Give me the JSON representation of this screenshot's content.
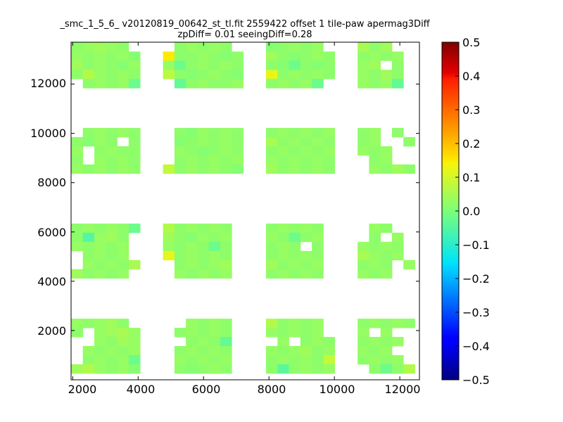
{
  "chart_data": {
    "type": "heatmap",
    "title_line1": "_smc_1_5_6_ v20120819_00642_st_tl.fit 2559422 offset 1 tile-paw apermag3Diff",
    "title_line2": "zpDiff= 0.01 seeingDiff=0.28",
    "xlim": [
      1950,
      12600
    ],
    "ylim": [
      0,
      13700
    ],
    "x_ticks": [
      "2000",
      "4000",
      "6000",
      "8000",
      "10000",
      "12000"
    ],
    "y_ticks": [
      "2000",
      "4000",
      "6000",
      "8000",
      "10000",
      "12000"
    ],
    "colorbar": {
      "colormap": "jet",
      "vmin": -0.5,
      "vmax": 0.5,
      "ticks": [
        "0.5",
        "0.4",
        "0.3",
        "0.2",
        "0.1",
        "0.0",
        "−0.1",
        "−0.2",
        "−0.3",
        "−0.4",
        "−0.5"
      ]
    },
    "cell_width": 350,
    "cell_height": 370,
    "col_starts": [
      1960,
      2310,
      2660,
      3010,
      3360,
      3710,
      4060,
      4410,
      4760,
      5110,
      5460,
      5810,
      6160,
      6510,
      6860,
      7210,
      7560,
      7910,
      8260,
      8610,
      8960,
      9310,
      9660,
      10010,
      10360,
      10710,
      11060,
      11410,
      11760,
      12110
    ],
    "row_starts": [
      13320,
      12950,
      12580,
      12210,
      11840,
      9850,
      9480,
      9110,
      8740,
      8370,
      7990,
      5970,
      5600,
      5230,
      4860,
      4490,
      4120,
      2110,
      1740,
      1370,
      1000,
      630,
      260,
      -110
    ],
    "values": [
      [
        0.02,
        0.03,
        0.04,
        0.03,
        0.02,
        null,
        null,
        null,
        null,
        0.02,
        0.03,
        0.02,
        0.03,
        0.02,
        null,
        null,
        null,
        0.01,
        0.02,
        0.03,
        0.02,
        0.03,
        null,
        null,
        null,
        0.05,
        0.02,
        0.04,
        null,
        null
      ],
      [
        0.03,
        0.02,
        0.03,
        0.02,
        0.03,
        0.01,
        null,
        null,
        0.15,
        0.02,
        0.02,
        0.03,
        0.02,
        0.01,
        0.02,
        null,
        null,
        0.04,
        0.02,
        0.01,
        0.02,
        0.03,
        0.02,
        null,
        null,
        0.02,
        0.03,
        0.02,
        0.03,
        null
      ],
      [
        0.04,
        0.02,
        0.03,
        0.02,
        0.01,
        0.03,
        null,
        null,
        0.03,
        -0.02,
        0.02,
        0.03,
        0.02,
        0.03,
        0.02,
        null,
        null,
        0.02,
        0.01,
        -0.02,
        0.02,
        0.01,
        0.02,
        null,
        null,
        0.03,
        0.04,
        null,
        0.02,
        null
      ],
      [
        0.02,
        0.06,
        0.03,
        0.02,
        0.03,
        0.02,
        null,
        null,
        0.07,
        0.02,
        0.01,
        0.02,
        0.03,
        0.02,
        0.01,
        null,
        null,
        0.12,
        0.02,
        0.03,
        0.02,
        0.03,
        0.02,
        null,
        null,
        0.03,
        0.02,
        0.04,
        0.02,
        null
      ],
      [
        null,
        0.02,
        0.03,
        0.02,
        0.03,
        -0.02,
        null,
        null,
        null,
        -0.03,
        0.02,
        0.03,
        0.02,
        0.02,
        0.03,
        null,
        null,
        0.02,
        0.03,
        0.02,
        0.03,
        -0.02,
        null,
        null,
        null,
        0.03,
        0.02,
        0.03,
        -0.03,
        null
      ],
      [
        null,
        0.02,
        0.03,
        0.02,
        0.03,
        0.02,
        null,
        null,
        null,
        0.02,
        0.01,
        0.03,
        0.02,
        0.03,
        0.02,
        null,
        null,
        0.02,
        0.03,
        0.02,
        0.03,
        0.02,
        0.03,
        null,
        null,
        0.02,
        0.03,
        null,
        0.02,
        null
      ],
      [
        0.02,
        0.01,
        0.03,
        0.02,
        null,
        0.02,
        null,
        null,
        null,
        0.01,
        0.02,
        0.03,
        0.02,
        0.03,
        0.02,
        null,
        null,
        0.05,
        0.02,
        0.03,
        0.02,
        0.03,
        0.02,
        null,
        null,
        0.02,
        0.03,
        null,
        null,
        0.02
      ],
      [
        0.03,
        null,
        0.02,
        0.03,
        0.02,
        0.02,
        null,
        null,
        null,
        0.03,
        0.02,
        0.01,
        0.02,
        0.03,
        0.02,
        null,
        null,
        0.02,
        0.03,
        0.02,
        0.03,
        0.02,
        0.03,
        null,
        null,
        0.03,
        0.02,
        0.03,
        null,
        null
      ],
      [
        0.02,
        null,
        0.03,
        0.02,
        0.03,
        0.02,
        null,
        null,
        null,
        0.02,
        0.03,
        0.02,
        0.03,
        0.02,
        0.03,
        null,
        null,
        0.03,
        0.02,
        0.03,
        0.02,
        0.03,
        0.02,
        null,
        null,
        null,
        0.02,
        0.03,
        null,
        null
      ],
      [
        0.03,
        0.02,
        0.03,
        0.02,
        0.03,
        0.02,
        null,
        null,
        0.08,
        0.02,
        0.03,
        0.02,
        0.03,
        0.02,
        0.01,
        null,
        null,
        0.04,
        0.02,
        0.03,
        0.02,
        0.03,
        0.02,
        null,
        null,
        null,
        0.03,
        0.02,
        0.04,
        0.02
      ],
      [
        null,
        null,
        null,
        null,
        null,
        null,
        null,
        null,
        null,
        null,
        null,
        null,
        null,
        null,
        null,
        null,
        null,
        null,
        null,
        null,
        null,
        null,
        null,
        null,
        null,
        null,
        null,
        null,
        null,
        null
      ],
      [
        0.02,
        0.03,
        0.02,
        0.03,
        0.02,
        -0.02,
        null,
        null,
        0.06,
        0.02,
        0.03,
        0.02,
        0.03,
        0.02,
        null,
        null,
        null,
        0.02,
        0.03,
        0.02,
        0.03,
        0.02,
        null,
        null,
        null,
        null,
        0.03,
        0.02,
        null,
        null
      ],
      [
        0.02,
        -0.05,
        0.03,
        0.04,
        0.02,
        null,
        null,
        null,
        0.04,
        0.02,
        0.01,
        0.03,
        0.02,
        0.03,
        null,
        null,
        null,
        0.03,
        0.02,
        -0.02,
        0.02,
        0.03,
        null,
        null,
        null,
        null,
        0.02,
        null,
        0.03,
        null
      ],
      [
        0.03,
        0.02,
        0.03,
        0.02,
        0.03,
        null,
        null,
        null,
        0.03,
        0.02,
        0.03,
        0.02,
        -0.02,
        0.02,
        null,
        null,
        null,
        0.02,
        0.03,
        0.02,
        null,
        0.02,
        null,
        null,
        null,
        0.03,
        0.02,
        0.03,
        0.02,
        null
      ],
      [
        null,
        0.02,
        0.03,
        0.02,
        0.03,
        null,
        null,
        null,
        0.12,
        0.02,
        0.03,
        0.02,
        0.03,
        0.02,
        null,
        null,
        null,
        0.02,
        0.03,
        0.02,
        0.03,
        0.02,
        null,
        null,
        null,
        0.05,
        0.03,
        0.02,
        0.03,
        null
      ],
      [
        null,
        0.03,
        0.02,
        0.03,
        0.02,
        0.05,
        null,
        null,
        null,
        0.02,
        0.03,
        0.02,
        0.03,
        0.04,
        null,
        null,
        null,
        0.04,
        0.02,
        0.03,
        0.02,
        0.03,
        null,
        null,
        null,
        0.02,
        0.03,
        0.02,
        null,
        0.03
      ],
      [
        0.04,
        0.02,
        0.03,
        0.02,
        0.03,
        null,
        null,
        null,
        null,
        0.03,
        0.02,
        0.03,
        0.02,
        0.03,
        null,
        null,
        null,
        0.02,
        0.03,
        0.02,
        0.03,
        0.02,
        null,
        null,
        null,
        0.03,
        0.02,
        0.03,
        null,
        null
      ],
      [
        0.03,
        0.02,
        0.03,
        0.04,
        0.02,
        null,
        null,
        null,
        null,
        null,
        0.03,
        0.02,
        0.03,
        0.02,
        null,
        null,
        null,
        0.06,
        0.02,
        0.03,
        0.02,
        0.03,
        null,
        null,
        null,
        0.02,
        0.03,
        0.02,
        0.03,
        0.02
      ],
      [
        0.02,
        null,
        0.03,
        0.04,
        0.05,
        0.03,
        null,
        null,
        null,
        0.02,
        0.03,
        0.02,
        0.03,
        0.02,
        null,
        null,
        null,
        0.03,
        0.02,
        0.03,
        0.02,
        0.03,
        null,
        null,
        null,
        0.03,
        null,
        0.03,
        null,
        null
      ],
      [
        null,
        null,
        0.03,
        0.02,
        0.04,
        0.03,
        null,
        null,
        null,
        null,
        0.02,
        0.03,
        0.02,
        -0.03,
        null,
        null,
        null,
        null,
        0.03,
        null,
        0.02,
        0.03,
        0.02,
        null,
        null,
        0.02,
        0.03,
        0.02,
        0.03,
        null
      ],
      [
        null,
        0.03,
        0.02,
        0.03,
        0.02,
        0.03,
        null,
        null,
        null,
        0.02,
        0.03,
        0.02,
        0.03,
        0.02,
        null,
        null,
        null,
        0.03,
        0.02,
        0.03,
        0.04,
        0.02,
        0.03,
        null,
        null,
        0.03,
        0.02,
        0.03,
        null,
        null
      ],
      [
        null,
        0.02,
        0.03,
        0.02,
        0.03,
        -0.02,
        null,
        null,
        null,
        0.03,
        0.02,
        0.03,
        0.02,
        0.03,
        null,
        null,
        null,
        0.02,
        0.03,
        0.02,
        0.03,
        0.02,
        0.08,
        null,
        null,
        0.02,
        0.03,
        0.02,
        0.03,
        null
      ],
      [
        0.04,
        0.06,
        0.03,
        0.02,
        0.03,
        0.01,
        null,
        null,
        null,
        0.02,
        0.01,
        0.02,
        0.03,
        0.02,
        null,
        null,
        null,
        0.02,
        -0.04,
        0.02,
        0.03,
        0.02,
        0.03,
        null,
        null,
        null,
        0.02,
        -0.02,
        0.02,
        0.06
      ],
      [
        null,
        null,
        null,
        null,
        null,
        null,
        null,
        null,
        null,
        null,
        null,
        null,
        null,
        null,
        null,
        null,
        null,
        null,
        null,
        null,
        null,
        null,
        null,
        null,
        null,
        null,
        null,
        null,
        null,
        null
      ]
    ]
  }
}
